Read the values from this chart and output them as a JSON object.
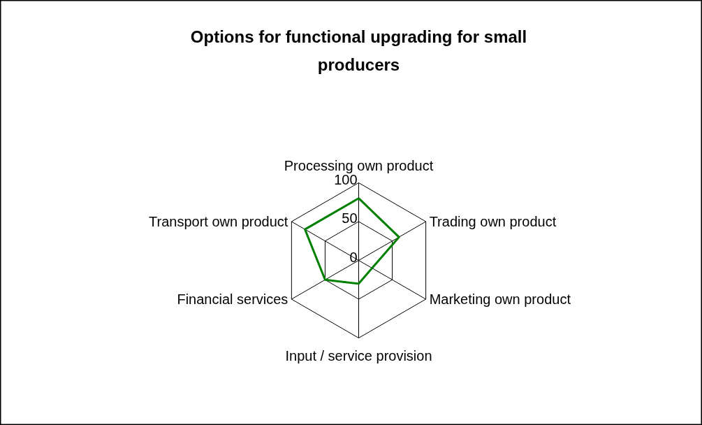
{
  "chart_data": {
    "type": "radar",
    "title": "Options for functional upgrading for small producers",
    "categories": [
      "Processing own product",
      "Trading own product",
      "Marketing own product",
      "Input / service provision",
      "Financial services",
      "Transport own product"
    ],
    "series": [
      {
        "color": "#008000",
        "values": [
          80,
          60,
          20,
          30,
          50,
          80
        ]
      }
    ],
    "ylim": [
      0,
      100
    ],
    "yticks": [
      0,
      50,
      100
    ],
    "grid": true
  }
}
